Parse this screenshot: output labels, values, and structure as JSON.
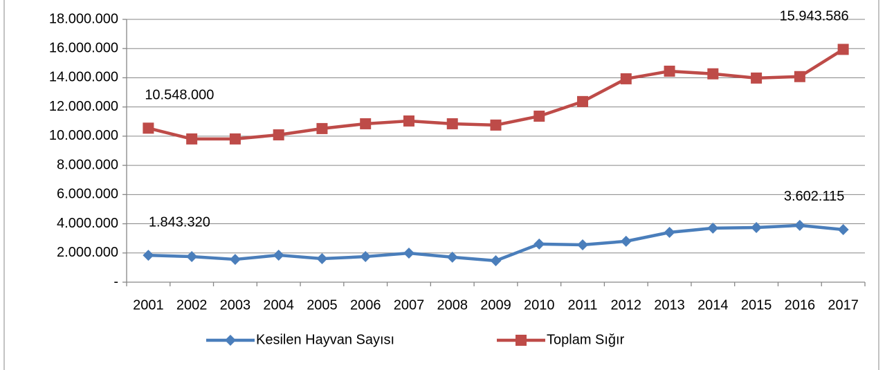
{
  "chart_data": {
    "type": "line",
    "categories": [
      "2001",
      "2002",
      "2003",
      "2004",
      "2005",
      "2006",
      "2007",
      "2008",
      "2009",
      "2010",
      "2011",
      "2012",
      "2013",
      "2014",
      "2015",
      "2016",
      "2017"
    ],
    "series": [
      {
        "name": "Kesilen Hayvan Sayısı",
        "color": "#4a7ebb",
        "marker": "diamond",
        "values": [
          1843320,
          1750000,
          1560000,
          1850000,
          1610000,
          1750000,
          1990000,
          1710000,
          1470000,
          2610000,
          2560000,
          2800000,
          3410000,
          3700000,
          3740000,
          3890000,
          3602115
        ],
        "value_labels": [
          "1.843.320",
          null,
          null,
          null,
          null,
          null,
          null,
          null,
          null,
          null,
          null,
          null,
          null,
          null,
          null,
          null,
          "3.602.115"
        ]
      },
      {
        "name": "Toplam Sığır",
        "color": "#be4b48",
        "marker": "square",
        "values": [
          10548000,
          9810000,
          9810000,
          10090000,
          10520000,
          10850000,
          11040000,
          10850000,
          10760000,
          11370000,
          12370000,
          13930000,
          14450000,
          14270000,
          13980000,
          14080000,
          15943586
        ],
        "value_labels": [
          "10.548.000",
          null,
          null,
          null,
          null,
          null,
          null,
          null,
          null,
          null,
          null,
          null,
          null,
          null,
          null,
          null,
          "15.943.586"
        ]
      }
    ],
    "ylim": [
      0,
      18000000
    ],
    "yticks": [
      {
        "value": 0,
        "label": "-"
      },
      {
        "value": 2000000,
        "label": "2.000.000"
      },
      {
        "value": 4000000,
        "label": "4.000.000"
      },
      {
        "value": 6000000,
        "label": "6.000.000"
      },
      {
        "value": 8000000,
        "label": "8.000.000"
      },
      {
        "value": 10000000,
        "label": "10.000.000"
      },
      {
        "value": 12000000,
        "label": "12.000.000"
      },
      {
        "value": 14000000,
        "label": "14.000.000"
      },
      {
        "value": 16000000,
        "label": "16.000.000"
      },
      {
        "value": 18000000,
        "label": "18.000.000"
      }
    ],
    "grid": true,
    "legend": "bottom"
  }
}
